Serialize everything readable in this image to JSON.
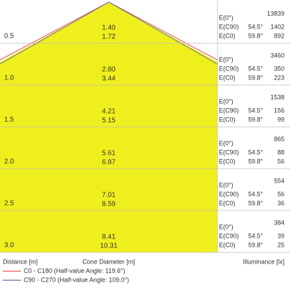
{
  "e_labels": [
    "E(0°)",
    "E(C90)",
    "E(C0)"
  ],
  "rows": [
    {
      "distance": "0.5",
      "diameters": [
        "1.40",
        "1.72"
      ],
      "e0": "13839",
      "c90_angle": "54.5°",
      "c90": "1402",
      "c0_angle": "59.8°",
      "c0": "892"
    },
    {
      "distance": "1.0",
      "diameters": [
        "2.80",
        "3.44"
      ],
      "e0": "3460",
      "c90_angle": "54.5°",
      "c90": "350",
      "c0_angle": "59.8°",
      "c0": "223"
    },
    {
      "distance": "1.5",
      "diameters": [
        "4.21",
        "5.15"
      ],
      "e0": "1538",
      "c90_angle": "54.5°",
      "c90": "156",
      "c0_angle": "59.8°",
      "c0": "99"
    },
    {
      "distance": "2.0",
      "diameters": [
        "5.61",
        "6.87"
      ],
      "e0": "865",
      "c90_angle": "54.5°",
      "c90": "88",
      "c0_angle": "59.8°",
      "c0": "56"
    },
    {
      "distance": "2.5",
      "diameters": [
        "7.01",
        "8.59"
      ],
      "e0": "554",
      "c90_angle": "54.5°",
      "c90": "56",
      "c0_angle": "59.8°",
      "c0": "36"
    },
    {
      "distance": "3.0",
      "diameters": [
        "8.41",
        "10.31"
      ],
      "e0": "384",
      "c90_angle": "54.5°",
      "c90": "39",
      "c0_angle": "59.8°",
      "c0": "25"
    }
  ],
  "footer": {
    "distance": "Distance [m]",
    "diameter": "Cone Diameter [m]",
    "illuminance": "Illuminance [lx]",
    "legend": [
      {
        "label": "C0 - C180 (Half-value Angle: 119.6°)",
        "color": "#e8504a"
      },
      {
        "label": "C90 - C270 (Half-value Angle: 109.0°)",
        "color": "#5a6ea8"
      }
    ]
  }
}
